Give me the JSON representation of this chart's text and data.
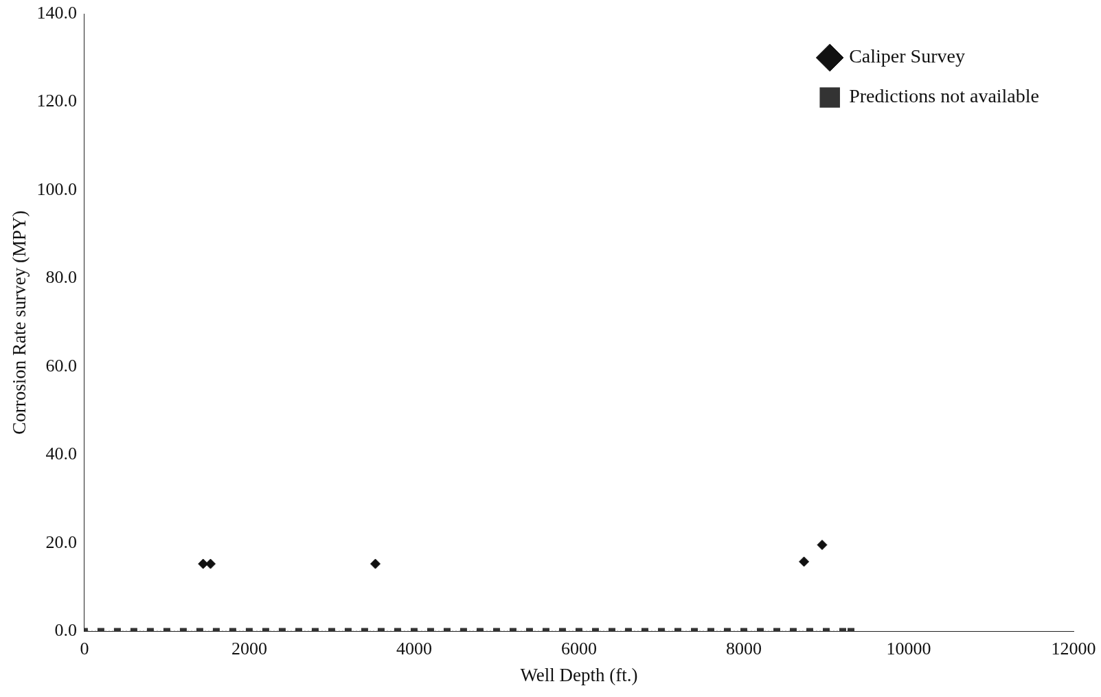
{
  "chart_data": {
    "type": "scatter",
    "xlabel": "Well Depth (ft.)",
    "ylabel": "Corrosion Rate survey (MPY)",
    "xlim": [
      0,
      12000
    ],
    "xticks": [
      0,
      2000,
      4000,
      6000,
      8000,
      10000,
      12000
    ],
    "ylim": [
      0,
      140
    ],
    "yticks": [
      {
        "value": 0,
        "label": "0.0"
      },
      {
        "value": 20,
        "label": "20.0"
      },
      {
        "value": 40,
        "label": "40.0"
      },
      {
        "value": 60,
        "label": "60.0"
      },
      {
        "value": 80,
        "label": "80.0"
      },
      {
        "value": 100,
        "label": "100.0"
      },
      {
        "value": 120,
        "label": "120.0"
      },
      {
        "value": 140,
        "label": "140.0"
      }
    ],
    "grid": false,
    "legend": "top right",
    "series": [
      {
        "name": "Caliper Survey",
        "type": "scatter",
        "marker": "diamond",
        "color": "#111111",
        "x": [
          1440,
          1530,
          3530,
          8730,
          8950
        ],
        "values": [
          15.3,
          15.3,
          15.3,
          15.8,
          19.6
        ]
      },
      {
        "name": "Predictions not available",
        "type": "line",
        "marker": "square",
        "line_style": "dotted",
        "color": "#333333",
        "x": [
          0,
          200,
          400,
          600,
          800,
          1000,
          1200,
          1400,
          1600,
          1800,
          2000,
          2200,
          2400,
          2600,
          2800,
          3000,
          3200,
          3400,
          3600,
          3800,
          4000,
          4200,
          4400,
          4600,
          4800,
          5000,
          5200,
          5400,
          5600,
          5800,
          6000,
          6200,
          6400,
          6600,
          6800,
          7000,
          7200,
          7400,
          7600,
          7800,
          8000,
          8200,
          8400,
          8600,
          8800,
          9000,
          9200,
          9300
        ],
        "values": [
          0,
          0,
          0,
          0,
          0,
          0,
          0,
          0,
          0,
          0,
          0,
          0,
          0,
          0,
          0,
          0,
          0,
          0,
          0,
          0,
          0,
          0,
          0,
          0,
          0,
          0,
          0,
          0,
          0,
          0,
          0,
          0,
          0,
          0,
          0,
          0,
          0,
          0,
          0,
          0,
          0,
          0,
          0,
          0,
          0,
          0,
          0,
          0
        ]
      }
    ]
  }
}
